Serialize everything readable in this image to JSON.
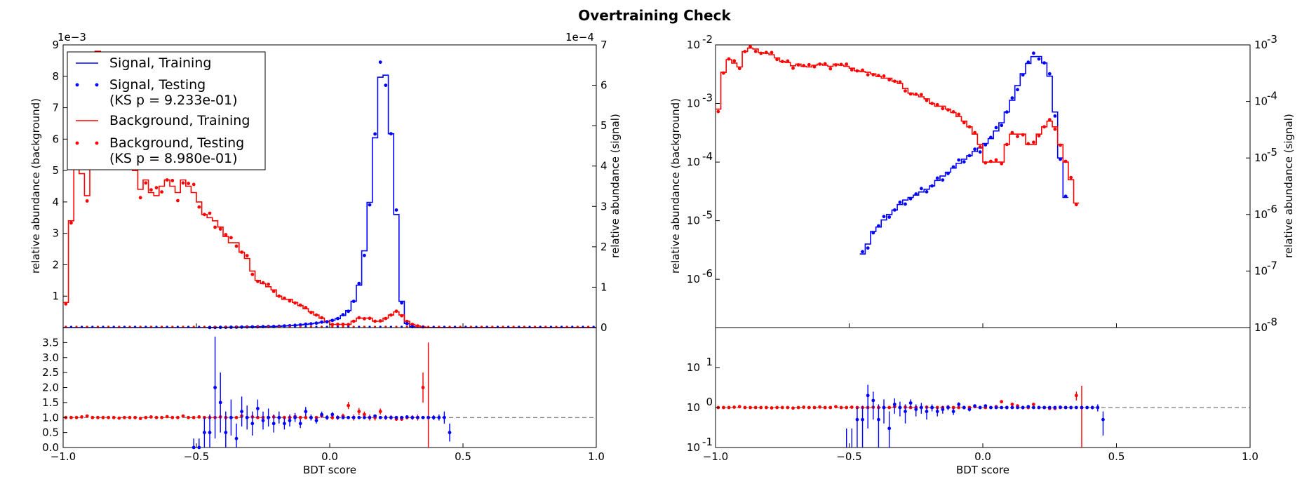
{
  "figure": {
    "title": "Overtraining Check"
  },
  "legend": {
    "entries": [
      {
        "label": "Signal, Training",
        "style": "line",
        "color": "#0000ff"
      },
      {
        "label": "Signal, Testing",
        "label2": "(KS p = 9.233e-01)",
        "style": "points",
        "color": "#0000ff"
      },
      {
        "label": "Background, Training",
        "style": "line",
        "color": "#ff0000"
      },
      {
        "label": "Background, Testing",
        "label2": "(KS p = 8.980e-01)",
        "style": "points",
        "color": "#ff0000"
      }
    ]
  },
  "colors": {
    "signal": "#0000ff",
    "background": "#ff0000",
    "ratio_ref": "#555555"
  },
  "chart_data": [
    {
      "type": "line",
      "panel": "left-main",
      "scale": "linear",
      "xlim": [
        -1.0,
        1.0
      ],
      "ylim_left": [
        0,
        0.009
      ],
      "ylim_right": [
        0,
        0.0007
      ],
      "ylabel_left": "relative abundance (background)",
      "ylabel_right": "relative abundance (signal)",
      "offset_left": "1e−3",
      "offset_right": "1e−4",
      "yticks_left": [
        "1",
        "2",
        "3",
        "4",
        "5",
        "6",
        "7",
        "8",
        "9"
      ],
      "yticks_right": [
        "0",
        "1",
        "2",
        "3",
        "4",
        "5",
        "6",
        "7"
      ],
      "x_bin_edges_start": -1.0,
      "bin_width": 0.02,
      "series": [
        {
          "name": "Background, Training",
          "values": [
            0.0008,
            0.0034,
            0.0056,
            0.0049,
            0.0042,
            0.0077,
            0.0088,
            0.0085,
            0.0074,
            0.0072,
            0.0068,
            0.006,
            0.0052,
            0.005,
            0.0044,
            0.0047,
            0.0043,
            0.0042,
            0.0045,
            0.0047,
            0.0045,
            0.0043,
            0.0047,
            0.0045,
            0.0043,
            0.004,
            0.0036,
            0.0035,
            0.0034,
            0.0032,
            0.0029,
            0.0027,
            0.0027,
            0.0024,
            0.0022,
            0.0018,
            0.0015,
            0.0014,
            0.0013,
            0.0012,
            0.001,
            0.0009,
            0.0009,
            0.0008,
            0.0007,
            0.0006,
            0.0005,
            0.0004,
            0.0003,
            0.0002,
            0.0001,
            0.0001,
            0.0001,
            0.0001,
            0.0002,
            0.0003,
            0.0003,
            0.0003,
            0.0002,
            0.0002,
            0.0003,
            0.0004,
            0.0005,
            0.0004,
            0.0002,
            0.0001,
            5e-05,
            2e-05,
            0,
            0,
            0,
            0,
            0,
            0,
            0,
            0,
            0,
            0,
            0,
            0,
            0,
            0,
            0,
            0,
            0,
            0,
            0,
            0,
            0,
            0,
            0,
            0,
            0,
            0,
            0,
            0,
            0,
            0,
            0,
            0
          ]
        },
        {
          "name": "Signal, Training",
          "values": [
            0,
            0,
            0,
            0,
            0,
            0,
            0,
            0,
            0,
            0,
            0,
            0,
            0,
            0,
            0,
            0,
            0,
            0,
            0,
            0,
            0,
            0,
            0,
            0,
            0,
            0,
            0,
            2e-07,
            3e-07,
            5e-07,
            6e-07,
            8e-07,
            1e-06,
            1.2e-06,
            1.5e-06,
            1.8e-06,
            2e-06,
            2.2e-06,
            2.5e-06,
            2.8e-06,
            3.2e-06,
            4e-06,
            4.8e-06,
            5.6e-06,
            6.6e-06,
            8e-06,
            9.5e-06,
            1.1e-05,
            1.3e-05,
            1.5e-05,
            1.8e-05,
            2.2e-05,
            3e-05,
            4.2e-05,
            6.5e-05,
            0.000105,
            0.00019,
            0.00031,
            0.00047,
            0.00062,
            0.000625,
            0.00048,
            0.00028,
            6.5e-05,
            1e-05,
            2e-06,
            0,
            0,
            0,
            0,
            0,
            0,
            0,
            0,
            0,
            0,
            0,
            0,
            0,
            0,
            0,
            0,
            0,
            0,
            0,
            0,
            0,
            0,
            0,
            0,
            0,
            0,
            0,
            0,
            0,
            0,
            0,
            0,
            0,
            0
          ]
        }
      ]
    },
    {
      "type": "scatter",
      "panel": "left-ratio",
      "xlim": [
        -1.0,
        1.0
      ],
      "ylim": [
        0.0,
        4.0
      ],
      "xlabel": "BDT score",
      "yticks": [
        "0.0",
        "0.5",
        "1.0",
        "1.5",
        "2.0",
        "2.5",
        "3.0",
        "3.5"
      ],
      "xticks": [
        "−1.0",
        "−0.5",
        "0.0",
        "0.5",
        "1.0"
      ],
      "reference_line": 1.0,
      "series": [
        {
          "name": "Background ratio",
          "x": [
            -0.99,
            -0.97,
            -0.95,
            -0.93,
            -0.91,
            -0.89,
            -0.87,
            -0.85,
            -0.83,
            -0.81,
            -0.79,
            -0.77,
            -0.75,
            -0.73,
            -0.71,
            -0.69,
            -0.67,
            -0.65,
            -0.63,
            -0.61,
            -0.59,
            -0.57,
            -0.55,
            -0.53,
            -0.51,
            -0.49,
            -0.47,
            -0.45,
            -0.43,
            -0.41,
            -0.39,
            -0.37,
            -0.35,
            -0.33,
            -0.31,
            -0.29,
            -0.27,
            -0.25,
            -0.23,
            -0.21,
            -0.19,
            -0.17,
            -0.15,
            -0.13,
            -0.11,
            -0.09,
            -0.07,
            -0.05,
            -0.03,
            -0.01,
            0.01,
            0.03,
            0.05,
            0.07,
            0.09,
            0.11,
            0.13,
            0.15,
            0.17,
            0.19,
            0.21,
            0.23,
            0.25,
            0.27,
            0.29,
            0.31,
            0.33,
            0.35,
            0.37
          ],
          "y": [
            1.0,
            1.0,
            1.0,
            1.02,
            1.05,
            1.0,
            1.0,
            1.0,
            1.0,
            1.0,
            0.98,
            1.0,
            1.0,
            1.0,
            0.97,
            1.0,
            1.02,
            1.0,
            1.0,
            1.03,
            1.0,
            1.0,
            1.05,
            1.0,
            1.0,
            1.02,
            1.0,
            1.0,
            1.0,
            1.02,
            1.0,
            1.0,
            1.0,
            1.05,
            1.0,
            1.02,
            1.0,
            1.0,
            1.0,
            1.02,
            1.0,
            1.0,
            1.0,
            1.03,
            1.0,
            1.0,
            1.0,
            1.0,
            1.05,
            1.0,
            1.0,
            1.0,
            1.05,
            1.4,
            1.0,
            1.2,
            1.1,
            1.0,
            1.0,
            1.2,
            1.0,
            1.0,
            0.95,
            0.95,
            1.0,
            1.0,
            1.0,
            2.0,
            1.0
          ],
          "err": [
            0.02,
            0.02,
            0.02,
            0.02,
            0.02,
            0.02,
            0.02,
            0.02,
            0.02,
            0.02,
            0.02,
            0.02,
            0.02,
            0.02,
            0.02,
            0.02,
            0.02,
            0.02,
            0.02,
            0.02,
            0.02,
            0.02,
            0.02,
            0.02,
            0.02,
            0.02,
            0.02,
            0.02,
            0.02,
            0.02,
            0.02,
            0.02,
            0.02,
            0.02,
            0.02,
            0.02,
            0.02,
            0.03,
            0.03,
            0.03,
            0.03,
            0.03,
            0.04,
            0.04,
            0.04,
            0.05,
            0.05,
            0.05,
            0.06,
            0.06,
            0.07,
            0.08,
            0.08,
            0.12,
            0.1,
            0.12,
            0.1,
            0.1,
            0.1,
            0.1,
            0.08,
            0.08,
            0.06,
            0.06,
            0.06,
            0.08,
            0.1,
            0.5,
            2.5
          ]
        },
        {
          "name": "Signal ratio",
          "x": [
            -0.51,
            -0.49,
            -0.47,
            -0.45,
            -0.43,
            -0.41,
            -0.39,
            -0.37,
            -0.35,
            -0.33,
            -0.31,
            -0.29,
            -0.27,
            -0.25,
            -0.23,
            -0.21,
            -0.19,
            -0.17,
            -0.15,
            -0.13,
            -0.11,
            -0.09,
            -0.07,
            -0.05,
            -0.03,
            -0.01,
            0.01,
            0.03,
            0.05,
            0.07,
            0.09,
            0.11,
            0.13,
            0.15,
            0.17,
            0.19,
            0.21,
            0.23,
            0.25,
            0.27,
            0.29,
            0.31,
            0.33,
            0.35,
            0.37,
            0.39,
            0.41,
            0.43,
            0.45
          ],
          "y": [
            0.0,
            0.0,
            0.5,
            0.5,
            2.0,
            1.5,
            0.5,
            1.0,
            0.3,
            1.2,
            1.0,
            0.8,
            1.3,
            0.9,
            1.0,
            0.8,
            1.0,
            0.8,
            0.9,
            1.0,
            0.8,
            1.2,
            1.0,
            0.9,
            1.1,
            1.0,
            1.1,
            1.0,
            1.0,
            1.0,
            1.0,
            1.0,
            1.0,
            1.0,
            1.05,
            1.0,
            1.0,
            1.0,
            1.0,
            1.0,
            1.02,
            1.0,
            1.0,
            1.0,
            1.0,
            1.0,
            1.0,
            1.0,
            0.5
          ],
          "err": [
            0.3,
            0.3,
            0.5,
            0.6,
            1.7,
            1.0,
            0.7,
            0.6,
            0.5,
            0.5,
            0.4,
            0.4,
            0.3,
            0.3,
            0.3,
            0.3,
            0.2,
            0.2,
            0.2,
            0.15,
            0.15,
            0.15,
            0.1,
            0.1,
            0.1,
            0.08,
            0.08,
            0.06,
            0.05,
            0.04,
            0.04,
            0.04,
            0.03,
            0.03,
            0.02,
            0.02,
            0.02,
            0.02,
            0.02,
            0.02,
            0.02,
            0.02,
            0.02,
            0.03,
            0.05,
            0.08,
            0.1,
            0.2,
            0.3
          ]
        }
      ]
    },
    {
      "type": "line",
      "panel": "right-main",
      "scale": "log",
      "xlim": [
        -1.0,
        1.0
      ],
      "ylim_left": [
        1.5e-07,
        0.01
      ],
      "ylim_right": [
        1e-08,
        0.001
      ],
      "ylabel_left": "relative abundance (background)",
      "ylabel_right": "relative abundance (signal)",
      "yticks_left": [
        "10",
        "10",
        "10",
        "10",
        "10"
      ],
      "yticks_left_exp": [
        "-6",
        "-5",
        "-4",
        "-3",
        "-2"
      ],
      "yticks_right": [
        "10",
        "10",
        "10",
        "10",
        "10",
        "10"
      ],
      "yticks_right_exp": [
        "-8",
        "-7",
        "-6",
        "-5",
        "-4",
        "-3"
      ],
      "series_ref": "same values as left-main"
    },
    {
      "type": "scatter",
      "panel": "right-ratio",
      "scale": "log",
      "xlim": [
        -1.0,
        1.0
      ],
      "ylim": [
        0.1,
        100
      ],
      "xlabel": "BDT score",
      "yticks": [
        "10",
        "10",
        "10"
      ],
      "yticks_exp": [
        "-1",
        "0",
        "1"
      ],
      "xticks": [
        "−1.0",
        "−0.5",
        "0.0",
        "0.5",
        "1.0"
      ],
      "reference_line": 1.0,
      "series_ref": "same values as left-ratio"
    }
  ]
}
